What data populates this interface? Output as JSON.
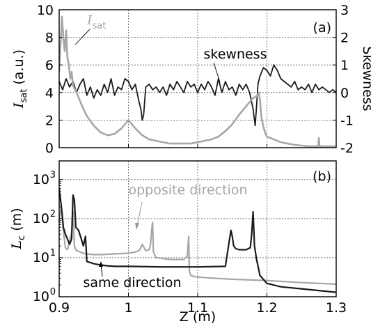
{
  "colors": {
    "black_series": "#1a1a1a",
    "gray_series": "#a6a6a6",
    "grid": "#555555",
    "axis": "#000000"
  },
  "chart_data": [
    {
      "panel_label": "(a)",
      "type": "line",
      "xlim": [
        0.9,
        1.3
      ],
      "ylim": [
        0,
        10
      ],
      "ylim_right": [
        -2,
        3
      ],
      "xticks": [
        0.9,
        1.0,
        1.1,
        1.2,
        1.3
      ],
      "yticks": [
        0,
        2,
        4,
        6,
        8,
        10
      ],
      "yticks_right": [
        -2,
        -1,
        0,
        1,
        2,
        3
      ],
      "ylabel_main": "I",
      "ylabel_sub": "sat",
      "ylabel_unit": " (a.u.)",
      "ylabel_right": "Skewness",
      "grid": true,
      "series": [
        {
          "name": "skewness",
          "axis": "right",
          "color": "#1a1a1a",
          "x": [
            0.9,
            0.905,
            0.91,
            0.915,
            0.92,
            0.925,
            0.93,
            0.935,
            0.94,
            0.945,
            0.95,
            0.955,
            0.96,
            0.965,
            0.97,
            0.975,
            0.98,
            0.985,
            0.99,
            0.995,
            1.0,
            1.005,
            1.01,
            1.015,
            1.018,
            1.02,
            1.022,
            1.025,
            1.03,
            1.035,
            1.04,
            1.045,
            1.05,
            1.055,
            1.06,
            1.065,
            1.07,
            1.075,
            1.08,
            1.085,
            1.09,
            1.095,
            1.1,
            1.105,
            1.11,
            1.115,
            1.12,
            1.125,
            1.13,
            1.135,
            1.14,
            1.145,
            1.15,
            1.155,
            1.16,
            1.165,
            1.17,
            1.175,
            1.18,
            1.183,
            1.185,
            1.187,
            1.19,
            1.195,
            1.2,
            1.205,
            1.21,
            1.215,
            1.22,
            1.225,
            1.23,
            1.235,
            1.24,
            1.245,
            1.25,
            1.255,
            1.26,
            1.265,
            1.27,
            1.275,
            1.28,
            1.285,
            1.29,
            1.295,
            1.3
          ],
          "values": [
            0.4,
            0.1,
            0.5,
            0.2,
            0.4,
            0.0,
            0.3,
            0.5,
            -0.1,
            0.2,
            -0.2,
            0.1,
            -0.1,
            0.3,
            0.0,
            0.5,
            -0.1,
            0.2,
            0.1,
            0.5,
            0.4,
            0.1,
            0.3,
            -0.3,
            -0.6,
            -1.0,
            -0.8,
            0.2,
            0.3,
            0.1,
            0.2,
            0.0,
            0.2,
            -0.1,
            0.3,
            0.1,
            0.4,
            0.2,
            0.0,
            0.4,
            0.2,
            0.3,
            0.0,
            0.3,
            0.1,
            0.4,
            0.2,
            -0.1,
            0.5,
            0.0,
            0.4,
            0.1,
            0.2,
            -0.1,
            0.3,
            0.1,
            0.3,
            0.0,
            -0.6,
            -1.2,
            -0.5,
            0.3,
            0.6,
            0.9,
            0.8,
            0.6,
            1.0,
            0.8,
            0.5,
            0.4,
            0.3,
            0.2,
            0.4,
            0.1,
            0.2,
            0.1,
            0.3,
            0.0,
            0.3,
            0.1,
            0.2,
            0.1,
            0.0,
            0.1,
            0.0
          ]
        },
        {
          "name": "I sat",
          "axis": "left",
          "color": "#a6a6a6",
          "x": [
            0.9,
            0.902,
            0.904,
            0.906,
            0.908,
            0.91,
            0.912,
            0.914,
            0.916,
            0.918,
            0.92,
            0.925,
            0.93,
            0.935,
            0.94,
            0.95,
            0.96,
            0.97,
            0.98,
            0.99,
            1.0,
            1.01,
            1.02,
            1.03,
            1.04,
            1.05,
            1.06,
            1.07,
            1.08,
            1.09,
            1.1,
            1.11,
            1.12,
            1.13,
            1.14,
            1.15,
            1.16,
            1.17,
            1.175,
            1.18,
            1.185,
            1.188,
            1.19,
            1.192,
            1.195,
            1.198,
            1.2,
            1.21,
            1.22,
            1.23,
            1.24,
            1.25,
            1.26,
            1.265,
            1.27,
            1.274,
            1.275,
            1.276,
            1.28,
            1.29,
            1.3
          ],
          "values": [
            5.5,
            7.5,
            9.5,
            8.0,
            7.0,
            8.5,
            6.5,
            6.0,
            5.0,
            5.5,
            4.5,
            4.0,
            3.4,
            2.8,
            2.3,
            1.6,
            1.1,
            0.9,
            1.0,
            1.4,
            2.0,
            1.4,
            0.9,
            0.6,
            0.5,
            0.4,
            0.3,
            0.3,
            0.3,
            0.3,
            0.4,
            0.5,
            0.6,
            0.8,
            1.2,
            1.7,
            2.4,
            3.0,
            3.3,
            3.6,
            3.7,
            4.0,
            3.5,
            2.2,
            1.5,
            1.0,
            0.8,
            0.6,
            0.4,
            0.3,
            0.2,
            0.15,
            0.1,
            0.1,
            0.1,
            0.1,
            0.7,
            0.1,
            0.1,
            0.1,
            0.1
          ]
        }
      ],
      "annotations": [
        {
          "text": "skewness",
          "x": 1.085,
          "y": 6.0
        },
        {
          "text_main": "I",
          "text_sub": "sat",
          "x": 0.935,
          "y": 9.4
        }
      ]
    },
    {
      "panel_label": "(b)",
      "type": "line",
      "xlim": [
        0.9,
        1.3
      ],
      "yscale": "log",
      "ylim": [
        1,
        3000
      ],
      "xticks": [
        0.9,
        1.0,
        1.1,
        1.2,
        1.3
      ],
      "xtick_labels": [
        "0.9",
        "1",
        "1.1",
        "1.2",
        "1.3"
      ],
      "ytick_exponents": [
        0,
        1,
        2,
        3
      ],
      "ytick_base": "10",
      "ylabel_main": "L",
      "ylabel_sub": "c",
      "ylabel_unit": " (m)",
      "xlabel": "Z (m)",
      "grid": true,
      "series": [
        {
          "name": "opposite direction",
          "color": "#a6a6a6",
          "x": [
            0.9,
            0.903,
            0.906,
            0.909,
            0.912,
            0.915,
            0.918,
            0.92,
            0.922,
            0.924,
            0.926,
            0.93,
            0.935,
            0.94,
            0.95,
            0.96,
            0.98,
            1.0,
            1.01,
            1.015,
            1.018,
            1.02,
            1.022,
            1.025,
            1.03,
            1.032,
            1.034,
            1.035,
            1.036,
            1.04,
            1.05,
            1.06,
            1.08,
            1.085,
            1.087,
            1.088,
            1.09,
            1.095,
            1.1,
            1.12,
            1.15,
            1.2,
            1.25,
            1.3
          ],
          "values": [
            90,
            200,
            50,
            18,
            16,
            25,
            45,
            150,
            20,
            16,
            15,
            14,
            13,
            12.5,
            12,
            12,
            12.5,
            13,
            14,
            15,
            18,
            22,
            19,
            15,
            16,
            22,
            60,
            80,
            14,
            10,
            9.5,
            9,
            9,
            11,
            35,
            4.5,
            3.5,
            3.3,
            3.2,
            3.0,
            2.8,
            2.6,
            2.3,
            2.1
          ]
        },
        {
          "name": "same direction",
          "color": "#1a1a1a",
          "x": [
            0.9,
            0.902,
            0.904,
            0.906,
            0.909,
            0.912,
            0.915,
            0.918,
            0.92,
            0.922,
            0.924,
            0.928,
            0.932,
            0.935,
            0.938,
            0.94,
            0.945,
            0.95,
            0.96,
            0.97,
            0.98,
            1.0,
            1.05,
            1.1,
            1.14,
            1.146,
            1.148,
            1.15,
            1.152,
            1.155,
            1.16,
            1.17,
            1.176,
            1.178,
            1.18,
            1.182,
            1.185,
            1.19,
            1.2,
            1.22,
            1.25,
            1.3
          ],
          "values": [
            600,
            300,
            150,
            60,
            40,
            30,
            22,
            30,
            400,
            300,
            60,
            50,
            30,
            20,
            35,
            8,
            7.5,
            7,
            6.5,
            6.2,
            6.0,
            6.0,
            5.8,
            5.8,
            6.0,
            30,
            50,
            35,
            20,
            17,
            16,
            16,
            18,
            40,
            150,
            20,
            9,
            3.5,
            2.2,
            1.8,
            1.6,
            1.3
          ]
        }
      ],
      "annotations": [
        {
          "text": "opposite direction",
          "x": 1.08,
          "y": 400
        },
        {
          "text": "same direction",
          "x": 1.01,
          "y": 1.4
        }
      ]
    }
  ]
}
